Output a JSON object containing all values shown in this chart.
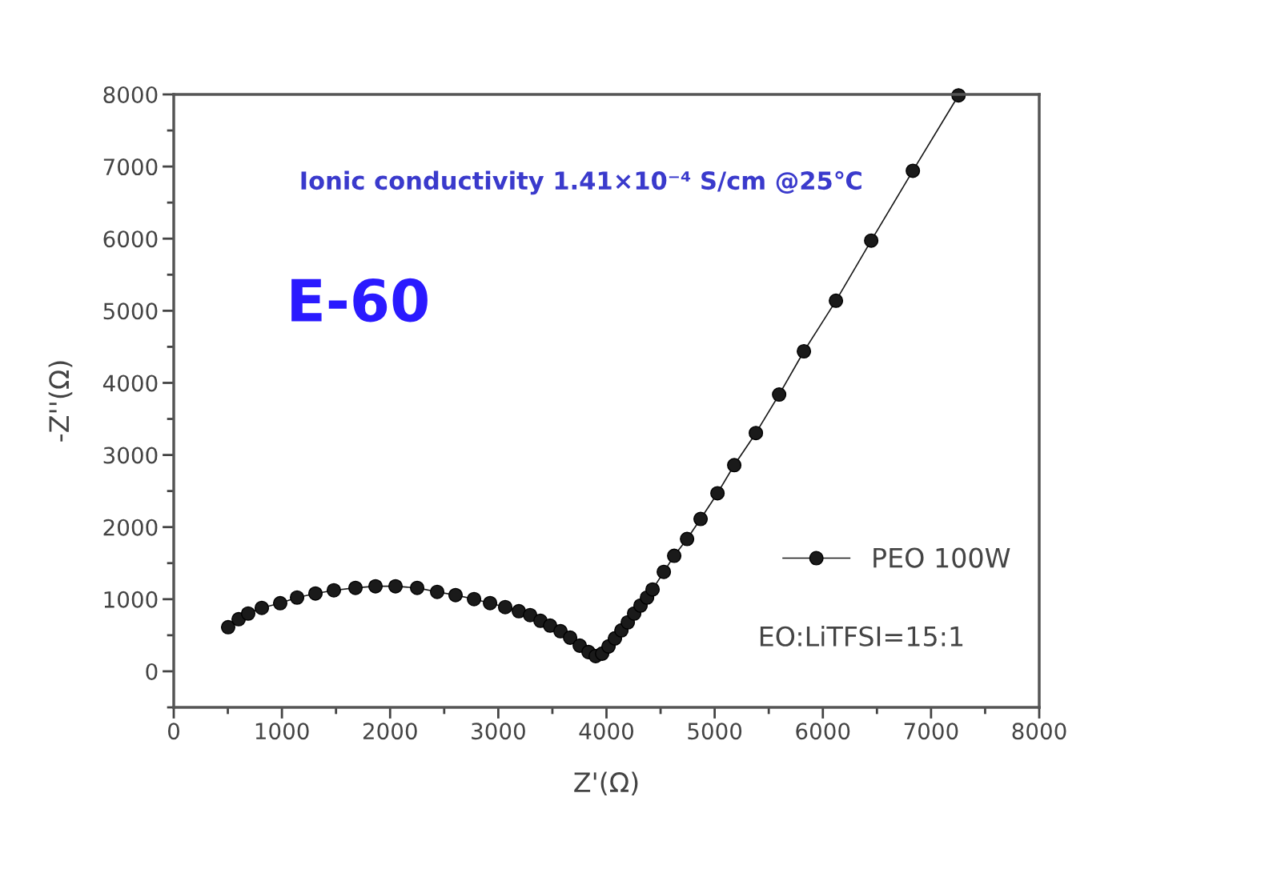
{
  "chart_data": {
    "type": "line",
    "xlabel": "Z'(Ω)",
    "ylabel": "-Z''(Ω)",
    "xlim": [
      0,
      8000
    ],
    "ylim": [
      -500,
      8000
    ],
    "xticks": [
      0,
      1000,
      2000,
      3000,
      4000,
      5000,
      6000,
      7000,
      8000
    ],
    "yticks": [
      0,
      1000,
      2000,
      3000,
      4000,
      5000,
      6000,
      7000,
      8000
    ],
    "marker": "circle",
    "line_style": "solid",
    "grid": false,
    "legend": "bottom right",
    "series": [
      {
        "name": "PEO 100W",
        "color": "#1a1a1a",
        "x": [
          503,
          600,
          688,
          814,
          984,
          1140,
          1310,
          1480,
          1680,
          1865,
          2050,
          2250,
          2435,
          2605,
          2776,
          2924,
          3064,
          3190,
          3294,
          3390,
          3479,
          3575,
          3664,
          3753,
          3834,
          3900,
          3960,
          4019,
          4078,
          4138,
          4197,
          4256,
          4315,
          4375,
          4426,
          4530,
          4626,
          4745,
          4870,
          5026,
          5181,
          5381,
          5596,
          5825,
          6121,
          6447,
          6832,
          7254
        ],
        "values": [
          612,
          723,
          801,
          879,
          945,
          1023,
          1079,
          1123,
          1157,
          1179,
          1179,
          1157,
          1101,
          1057,
          1001,
          946,
          890,
          834,
          779,
          701,
          634,
          556,
          467,
          356,
          267,
          211,
          245,
          345,
          456,
          567,
          679,
          801,
          912,
          1023,
          1135,
          1379,
          1602,
          1835,
          2113,
          2469,
          2859,
          3304,
          3838,
          4438,
          5139,
          5973,
          6941,
          7987
        ]
      }
    ],
    "annotations": [
      "Ionic conductivity 1.41×10⁻⁴ S/cm @25℃",
      "E-60",
      "EO:LiTFSI=15:1"
    ]
  }
}
